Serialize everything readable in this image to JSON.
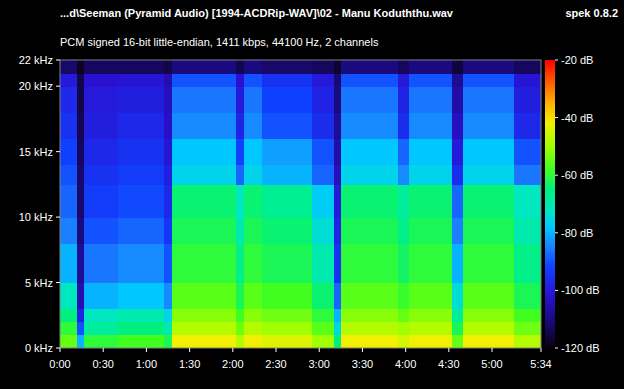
{
  "chart_data": {
    "type": "heatmap",
    "title": "...d\\Seeman (Pyramid Audio) [1994-ACDRip-WAV]\\02 - Manu Koduththu.wav",
    "subtitle": "PCM signed 16-bit little-endian, 1411 kbps, 44100 Hz, 2 channels",
    "annotations": [
      "spek 0.8.2"
    ],
    "x_bins": [
      0,
      12,
      17,
      40,
      72,
      78,
      122,
      128,
      140,
      175,
      190,
      195,
      235,
      242,
      272,
      280,
      315,
      334
    ],
    "y_bins": [
      0,
      1,
      2,
      3,
      5,
      8,
      10,
      12.5,
      14,
      16,
      18,
      20,
      21,
      22
    ],
    "cells": [
      [
        -55,
        -80,
        -60,
        -58,
        -62,
        -42,
        -48,
        -42,
        -44,
        -50,
        -65,
        -42,
        -45,
        -42,
        -55,
        -42,
        -48
      ],
      [
        -60,
        -90,
        -68,
        -65,
        -70,
        -48,
        -54,
        -48,
        -50,
        -56,
        -75,
        -48,
        -50,
        -48,
        -62,
        -48,
        -54
      ],
      [
        -65,
        -98,
        -72,
        -70,
        -76,
        -52,
        -58,
        -52,
        -54,
        -60,
        -80,
        -52,
        -55,
        -52,
        -68,
        -52,
        -58
      ],
      [
        -72,
        -105,
        -80,
        -78,
        -84,
        -56,
        -62,
        -56,
        -58,
        -64,
        -88,
        -56,
        -59,
        -56,
        -74,
        -56,
        -62
      ],
      [
        -80,
        -108,
        -86,
        -84,
        -90,
        -60,
        -66,
        -60,
        -62,
        -70,
        -95,
        -60,
        -63,
        -60,
        -80,
        -60,
        -66
      ],
      [
        -85,
        -110,
        -90,
        -88,
        -94,
        -62,
        -70,
        -62,
        -64,
        -74,
        -98,
        -62,
        -66,
        -62,
        -85,
        -62,
        -70
      ],
      [
        -88,
        -112,
        -93,
        -91,
        -97,
        -64,
        -72,
        -64,
        -67,
        -77,
        -100,
        -64,
        -68,
        -64,
        -88,
        -64,
        -72
      ],
      [
        -90,
        -112,
        -95,
        -93,
        -99,
        -76,
        -88,
        -76,
        -80,
        -88,
        -104,
        -76,
        -84,
        -76,
        -96,
        -76,
        -86
      ],
      [
        -92,
        -113,
        -97,
        -95,
        -101,
        -78,
        -92,
        -78,
        -82,
        -90,
        -106,
        -78,
        -88,
        -78,
        -100,
        -78,
        -90
      ],
      [
        -95,
        -114,
        -99,
        -97,
        -103,
        -84,
        -98,
        -84,
        -90,
        -96,
        -108,
        -84,
        -96,
        -84,
        -104,
        -84,
        -97
      ],
      [
        -97,
        -115,
        -100,
        -99,
        -104,
        -86,
        -100,
        -86,
        -92,
        -98,
        -110,
        -86,
        -98,
        -86,
        -106,
        -86,
        -99
      ],
      [
        -100,
        -115,
        -102,
        -101,
        -105,
        -90,
        -102,
        -90,
        -95,
        -100,
        -111,
        -90,
        -100,
        -90,
        -108,
        -90,
        -101
      ],
      [
        -112,
        -118,
        -113,
        -113,
        -115,
        -110,
        -114,
        -110,
        -112,
        -113,
        -117,
        -110,
        -113,
        -110,
        -116,
        -110,
        -113
      ]
    ],
    "xlim": [
      0,
      334
    ],
    "ylim": [
      0,
      22
    ],
    "xticks": [
      {
        "value": 0,
        "label": "0:00"
      },
      {
        "value": 30,
        "label": "0:30"
      },
      {
        "value": 60,
        "label": "1:00"
      },
      {
        "value": 90,
        "label": "1:30"
      },
      {
        "value": 120,
        "label": "2:00"
      },
      {
        "value": 150,
        "label": "2:30"
      },
      {
        "value": 180,
        "label": "3:00"
      },
      {
        "value": 210,
        "label": "3:30"
      },
      {
        "value": 240,
        "label": "4:00"
      },
      {
        "value": 270,
        "label": "4:30"
      },
      {
        "value": 300,
        "label": "5:00"
      },
      {
        "value": 334,
        "label": "5:34"
      }
    ],
    "yticks": [
      {
        "value": 0,
        "label": "0 kHz"
      },
      {
        "value": 5,
        "label": "5 kHz"
      },
      {
        "value": 10,
        "label": "10 kHz"
      },
      {
        "value": 15,
        "label": "15 kHz"
      },
      {
        "value": 20,
        "label": "20 kHz"
      },
      {
        "value": 22,
        "label": "22 kHz"
      }
    ],
    "colorbar": {
      "range": [
        -120,
        -20
      ],
      "ticks": [
        {
          "value": -20,
          "label": "-20 dB"
        },
        {
          "value": -40,
          "label": "-40 dB"
        },
        {
          "value": -60,
          "label": "-60 dB"
        },
        {
          "value": -80,
          "label": "-80 dB"
        },
        {
          "value": -100,
          "label": "-100 dB"
        },
        {
          "value": -120,
          "label": "-120 dB"
        }
      ]
    }
  }
}
